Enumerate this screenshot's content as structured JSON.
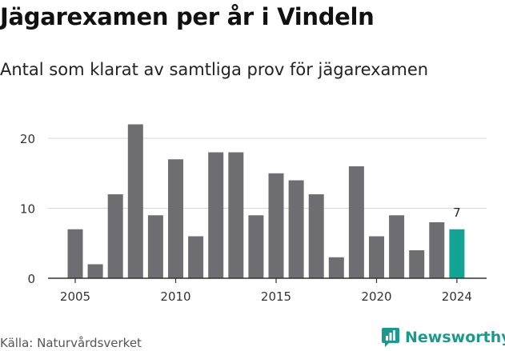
{
  "header": {
    "title": "Jägarexamen per år i Vindeln",
    "subtitle": "Antal som klarat av samtliga prov för jägarexamen"
  },
  "footer": {
    "source": "Källa: Naturvårdsverket",
    "brand": "Newsworthy",
    "brand_icon": "newsworthy-logo-icon"
  },
  "colors": {
    "bar": "#6e6d72",
    "highlight": "#12a596",
    "grid": "#d8d8d8",
    "axis": "#333333",
    "brand": "#1a9a8c"
  },
  "chart_data": {
    "type": "bar",
    "categories": [
      2005,
      2006,
      2007,
      2008,
      2009,
      2010,
      2011,
      2012,
      2013,
      2014,
      2015,
      2016,
      2017,
      2018,
      2019,
      2020,
      2021,
      2022,
      2023,
      2024
    ],
    "values": [
      7,
      2,
      12,
      22,
      9,
      17,
      6,
      18,
      18,
      9,
      15,
      14,
      12,
      3,
      16,
      6,
      9,
      4,
      8,
      7
    ],
    "x_ticks": [
      2005,
      2010,
      2015,
      2020,
      2024
    ],
    "y_ticks": [
      0,
      10,
      20
    ],
    "ylim": [
      0,
      22
    ],
    "highlight": {
      "category": 2024,
      "label": "7"
    },
    "title": "Jägarexamen per år i Vindeln",
    "subtitle": "Antal som klarat av samtliga prov för jägarexamen",
    "grid": true,
    "legend": "none"
  }
}
